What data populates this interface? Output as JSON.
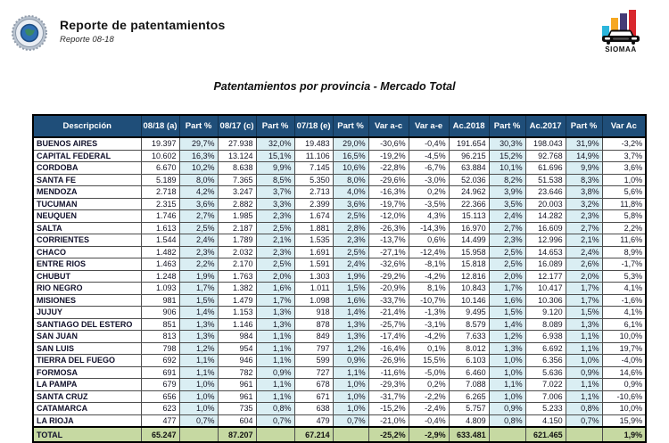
{
  "header": {
    "title": "Reporte de patentamientos",
    "subtitle": "Reporte 08-18",
    "brand": "SIOMAA"
  },
  "table": {
    "title": "Patentamientos por provincia - Mercado Total",
    "columns": [
      "Descripción",
      "08/18 (a)",
      "Part %",
      "08/17 (c)",
      "Part %",
      "07/18 (e)",
      "Part %",
      "Var a-c",
      "Var a-e",
      "Ac.2018",
      "Part %",
      "Ac.2017",
      "Part %",
      "Var Ac"
    ],
    "rows": [
      [
        "BUENOS AIRES",
        "19.397",
        "29,7%",
        "27.938",
        "32,0%",
        "19.483",
        "29,0%",
        "-30,6%",
        "-0,4%",
        "191.654",
        "30,3%",
        "198.043",
        "31,9%",
        "-3,2%"
      ],
      [
        "CAPITAL FEDERAL",
        "10.602",
        "16,3%",
        "13.124",
        "15,1%",
        "11.106",
        "16,5%",
        "-19,2%",
        "-4,5%",
        "96.215",
        "15,2%",
        "92.768",
        "14,9%",
        "3,7%"
      ],
      [
        "CORDOBA",
        "6.670",
        "10,2%",
        "8.638",
        "9,9%",
        "7.145",
        "10,6%",
        "-22,8%",
        "-6,7%",
        "63.884",
        "10,1%",
        "61.696",
        "9,9%",
        "3,6%"
      ],
      [
        "SANTA FE",
        "5.189",
        "8,0%",
        "7.365",
        "8,5%",
        "5.350",
        "8,0%",
        "-29,6%",
        "-3,0%",
        "52.036",
        "8,2%",
        "51.538",
        "8,3%",
        "1,0%"
      ],
      [
        "MENDOZA",
        "2.718",
        "4,2%",
        "3.247",
        "3,7%",
        "2.713",
        "4,0%",
        "-16,3%",
        "0,2%",
        "24.962",
        "3,9%",
        "23.646",
        "3,8%",
        "5,6%"
      ],
      [
        "TUCUMAN",
        "2.315",
        "3,6%",
        "2.882",
        "3,3%",
        "2.399",
        "3,6%",
        "-19,7%",
        "-3,5%",
        "22.366",
        "3,5%",
        "20.003",
        "3,2%",
        "11,8%"
      ],
      [
        "NEUQUEN",
        "1.746",
        "2,7%",
        "1.985",
        "2,3%",
        "1.674",
        "2,5%",
        "-12,0%",
        "4,3%",
        "15.113",
        "2,4%",
        "14.282",
        "2,3%",
        "5,8%"
      ],
      [
        "SALTA",
        "1.613",
        "2,5%",
        "2.187",
        "2,5%",
        "1.881",
        "2,8%",
        "-26,3%",
        "-14,3%",
        "16.970",
        "2,7%",
        "16.609",
        "2,7%",
        "2,2%"
      ],
      [
        "CORRIENTES",
        "1.544",
        "2,4%",
        "1.789",
        "2,1%",
        "1.535",
        "2,3%",
        "-13,7%",
        "0,6%",
        "14.499",
        "2,3%",
        "12.996",
        "2,1%",
        "11,6%"
      ],
      [
        "CHACO",
        "1.482",
        "2,3%",
        "2.032",
        "2,3%",
        "1.691",
        "2,5%",
        "-27,1%",
        "-12,4%",
        "15.958",
        "2,5%",
        "14.653",
        "2,4%",
        "8,9%"
      ],
      [
        "ENTRE RIOS",
        "1.463",
        "2,2%",
        "2.170",
        "2,5%",
        "1.591",
        "2,4%",
        "-32,6%",
        "-8,1%",
        "15.818",
        "2,5%",
        "16.089",
        "2,6%",
        "-1,7%"
      ],
      [
        "CHUBUT",
        "1.248",
        "1,9%",
        "1.763",
        "2,0%",
        "1.303",
        "1,9%",
        "-29,2%",
        "-4,2%",
        "12.816",
        "2,0%",
        "12.177",
        "2,0%",
        "5,3%"
      ],
      [
        "RIO NEGRO",
        "1.093",
        "1,7%",
        "1.382",
        "1,6%",
        "1.011",
        "1,5%",
        "-20,9%",
        "8,1%",
        "10.843",
        "1,7%",
        "10.417",
        "1,7%",
        "4,1%"
      ],
      [
        "MISIONES",
        "981",
        "1,5%",
        "1.479",
        "1,7%",
        "1.098",
        "1,6%",
        "-33,7%",
        "-10,7%",
        "10.146",
        "1,6%",
        "10.306",
        "1,7%",
        "-1,6%"
      ],
      [
        "JUJUY",
        "906",
        "1,4%",
        "1.153",
        "1,3%",
        "918",
        "1,4%",
        "-21,4%",
        "-1,3%",
        "9.495",
        "1,5%",
        "9.120",
        "1,5%",
        "4,1%"
      ],
      [
        "SANTIAGO DEL ESTERO",
        "851",
        "1,3%",
        "1.146",
        "1,3%",
        "878",
        "1,3%",
        "-25,7%",
        "-3,1%",
        "8.579",
        "1,4%",
        "8.089",
        "1,3%",
        "6,1%"
      ],
      [
        "SAN JUAN",
        "813",
        "1,3%",
        "984",
        "1,1%",
        "849",
        "1,3%",
        "-17,4%",
        "-4,2%",
        "7.633",
        "1,2%",
        "6.938",
        "1,1%",
        "10,0%"
      ],
      [
        "SAN LUIS",
        "798",
        "1,2%",
        "954",
        "1,1%",
        "797",
        "1,2%",
        "-16,4%",
        "0,1%",
        "8.012",
        "1,3%",
        "6.692",
        "1,1%",
        "19,7%"
      ],
      [
        "TIERRA DEL FUEGO",
        "692",
        "1,1%",
        "946",
        "1,1%",
        "599",
        "0,9%",
        "-26,9%",
        "15,5%",
        "6.103",
        "1,0%",
        "6.356",
        "1,0%",
        "-4,0%"
      ],
      [
        "FORMOSA",
        "691",
        "1,1%",
        "782",
        "0,9%",
        "727",
        "1,1%",
        "-11,6%",
        "-5,0%",
        "6.460",
        "1,0%",
        "5.636",
        "0,9%",
        "14,6%"
      ],
      [
        "LA PAMPA",
        "679",
        "1,0%",
        "961",
        "1,1%",
        "678",
        "1,0%",
        "-29,3%",
        "0,2%",
        "7.088",
        "1,1%",
        "7.022",
        "1,1%",
        "0,9%"
      ],
      [
        "SANTA CRUZ",
        "656",
        "1,0%",
        "961",
        "1,1%",
        "671",
        "1,0%",
        "-31,7%",
        "-2,2%",
        "6.265",
        "1,0%",
        "7.006",
        "1,1%",
        "-10,6%"
      ],
      [
        "CATAMARCA",
        "623",
        "1,0%",
        "735",
        "0,8%",
        "638",
        "1,0%",
        "-15,2%",
        "-2,4%",
        "5.757",
        "0,9%",
        "5.233",
        "0,8%",
        "10,0%"
      ],
      [
        "LA RIOJA",
        "477",
        "0,7%",
        "604",
        "0,7%",
        "479",
        "0,7%",
        "-21,0%",
        "-0,4%",
        "4.809",
        "0,8%",
        "4.150",
        "0,7%",
        "15,9%"
      ]
    ],
    "total": [
      "TOTAL",
      "65.247",
      "",
      "87.207",
      "",
      "67.214",
      "",
      "-25,2%",
      "-2,9%",
      "633.481",
      "",
      "621.465",
      "",
      "1,9%"
    ]
  },
  "colors": {
    "header_bg": "#1F4E79",
    "part_column_bg": "#DAEEF3",
    "total_row_bg": "#C6D9A2",
    "bar_blue": "#2BB6DC",
    "bar_orange": "#F6A821",
    "bar_purple": "#463B77",
    "bar_red": "#D9272E"
  }
}
